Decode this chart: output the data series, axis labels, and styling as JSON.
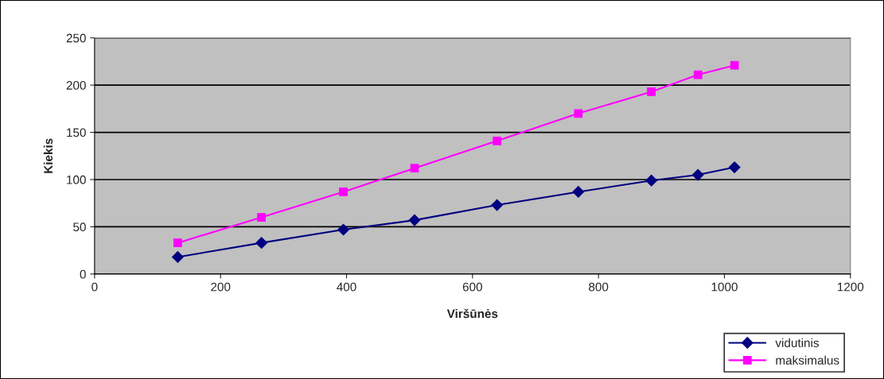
{
  "chart_data": {
    "type": "line",
    "xlabel": "Viršūnės",
    "ylabel": "Kiekis",
    "xlim": [
      0,
      1200
    ],
    "xticks": [
      0,
      200,
      400,
      600,
      800,
      1000,
      1200
    ],
    "ylim": [
      0,
      250
    ],
    "yticks": [
      0,
      50,
      100,
      150,
      200,
      250
    ],
    "grid": "y",
    "legend": "bottom right",
    "series": [
      {
        "name": "vidutinis",
        "color": "#000080",
        "marker": "diamond",
        "x": [
          132,
          265,
          395,
          508,
          639,
          768,
          884,
          958,
          1016
        ],
        "values": [
          18,
          33,
          47,
          57,
          73,
          87,
          99,
          105,
          113
        ]
      },
      {
        "name": "maksimalus",
        "color": "#ff00ff",
        "marker": "square",
        "x": [
          132,
          265,
          395,
          508,
          639,
          768,
          884,
          958,
          1016
        ],
        "values": [
          33,
          60,
          87,
          112,
          141,
          170,
          193,
          211,
          221
        ]
      }
    ]
  }
}
